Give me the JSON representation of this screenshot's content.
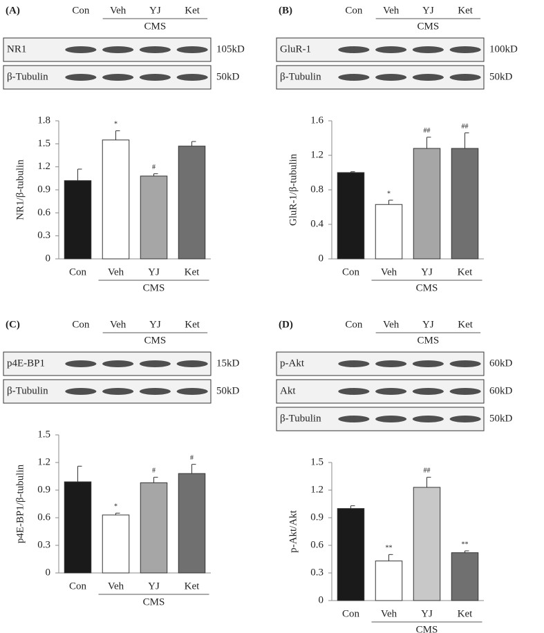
{
  "chart_data": [
    {
      "type": "bar",
      "panel": "(A)",
      "group_label": "CMS",
      "blots": [
        {
          "label": "NR1",
          "size": "105kD"
        },
        {
          "label": "β-Tubulin",
          "size": "50kD"
        }
      ],
      "y_label": "NR1/β-tubulin",
      "categories": [
        "Con",
        "Veh",
        "YJ",
        "Ket"
      ],
      "values": [
        1.02,
        1.55,
        1.08,
        1.47
      ],
      "errors": [
        0.15,
        0.12,
        0.03,
        0.06
      ],
      "annotations": [
        null,
        "*",
        "#",
        null
      ],
      "colors": [
        "#1a1a1a",
        "#ffffff",
        "#a6a6a6",
        "#707070"
      ],
      "ylim": [
        0,
        1.8
      ],
      "yticks": [
        0,
        0.3,
        0.6,
        0.9,
        1.2,
        1.5,
        1.8
      ]
    },
    {
      "type": "bar",
      "panel": "(B)",
      "group_label": "CMS",
      "blots": [
        {
          "label": "GluR-1",
          "size": "100kD"
        },
        {
          "label": "β-Tubulin",
          "size": "50kD"
        }
      ],
      "y_label": "GluR-1/β-tubulin",
      "categories": [
        "Con",
        "Veh",
        "YJ",
        "Ket"
      ],
      "values": [
        1.0,
        0.63,
        1.28,
        1.28
      ],
      "errors": [
        0.01,
        0.05,
        0.13,
        0.18
      ],
      "annotations": [
        null,
        "*",
        "##",
        "##"
      ],
      "colors": [
        "#1a1a1a",
        "#ffffff",
        "#a6a6a6",
        "#707070"
      ],
      "ylim": [
        0,
        1.6
      ],
      "yticks": [
        0,
        0.4,
        0.8,
        1.2,
        1.6
      ]
    },
    {
      "type": "bar",
      "panel": "(C)",
      "group_label": "CMS",
      "blots": [
        {
          "label": "p4E-BP1",
          "size": "15kD"
        },
        {
          "label": "β-Tubulin",
          "size": "50kD"
        }
      ],
      "y_label": "p4E-BP1/β-tubulin",
      "categories": [
        "Con",
        "Veh",
        "YJ",
        "Ket"
      ],
      "values": [
        0.99,
        0.63,
        0.98,
        1.08
      ],
      "errors": [
        0.17,
        0.02,
        0.06,
        0.1
      ],
      "annotations": [
        null,
        "*",
        "#",
        "#"
      ],
      "colors": [
        "#1a1a1a",
        "#ffffff",
        "#a6a6a6",
        "#707070"
      ],
      "ylim": [
        0,
        1.5
      ],
      "yticks": [
        0,
        0.3,
        0.6,
        0.9,
        1.2,
        1.5
      ]
    },
    {
      "type": "bar",
      "panel": "(D)",
      "group_label": "CMS",
      "blots": [
        {
          "label": "p-Akt",
          "size": "60kD"
        },
        {
          "label": "Akt",
          "size": "60kD"
        },
        {
          "label": "β-Tubulin",
          "size": "50kD"
        }
      ],
      "y_label": "p-Akt/Akt",
      "categories": [
        "Con",
        "Veh",
        "YJ",
        "Ket"
      ],
      "values": [
        1.0,
        0.43,
        1.23,
        0.52
      ],
      "errors": [
        0.03,
        0.07,
        0.11,
        0.02
      ],
      "annotations": [
        null,
        "**",
        "##",
        "**"
      ],
      "colors": [
        "#1a1a1a",
        "#ffffff",
        "#c8c8c8",
        "#707070"
      ],
      "ylim": [
        0,
        1.5
      ],
      "yticks": [
        0,
        0.3,
        0.6,
        0.9,
        1.2,
        1.5
      ]
    }
  ]
}
